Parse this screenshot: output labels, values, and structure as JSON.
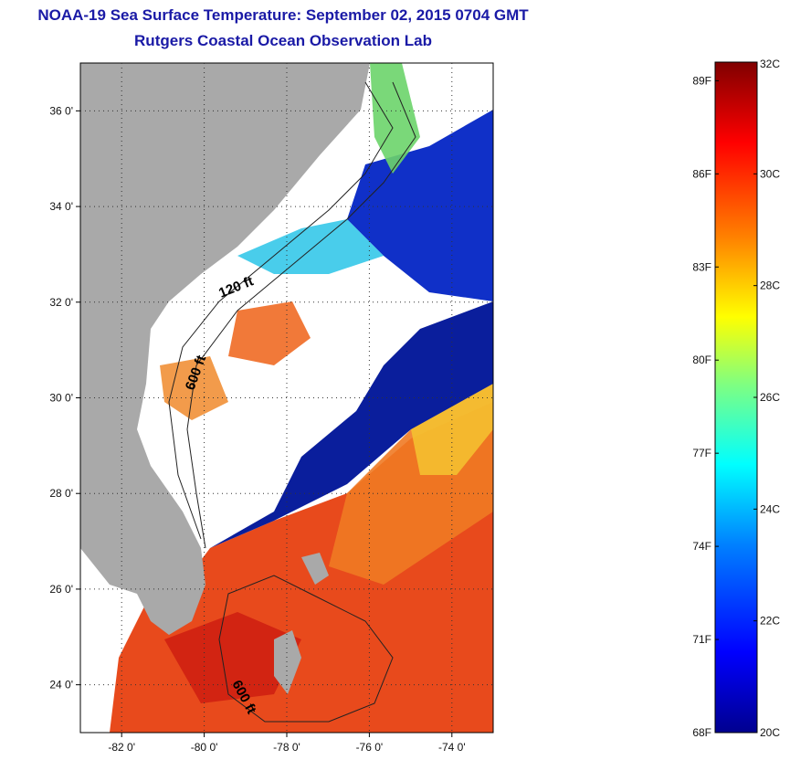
{
  "header": {
    "title": "NOAA-19 Sea Surface Temperature:  September 02, 2015 0704 GMT",
    "subtitle": "Rutgers Coastal Ocean Observation Lab"
  },
  "map": {
    "lat_ticks": [
      {
        "value": 36,
        "label": "36 0'"
      },
      {
        "value": 34,
        "label": "34 0'"
      },
      {
        "value": 32,
        "label": "32 0'"
      },
      {
        "value": 30,
        "label": "30 0'"
      },
      {
        "value": 28,
        "label": "28 0'"
      },
      {
        "value": 26,
        "label": "26 0'"
      },
      {
        "value": 24,
        "label": "24 0'"
      }
    ],
    "lon_ticks": [
      {
        "value": -82,
        "label": "-82 0'"
      },
      {
        "value": -80,
        "label": "-80 0'"
      },
      {
        "value": -78,
        "label": "-78 0'"
      },
      {
        "value": -76,
        "label": "-76 0'"
      },
      {
        "value": -74,
        "label": "-74 0'"
      }
    ],
    "lat_range": [
      23,
      37
    ],
    "lon_range": [
      -83,
      -73
    ],
    "contour_labels": {
      "shelf_120": "120 ft",
      "shelf_600_north": "600 ft",
      "shelf_600_south": "600 ft"
    },
    "colors": {
      "land": "#a9a9a9",
      "cloud": "#ffffff",
      "cool_water": "#0a1e9c",
      "warm_water": "#e8401a"
    }
  },
  "colorbar": {
    "celsius_labels": [
      {
        "value": 32,
        "label": "32C"
      },
      {
        "value": 30,
        "label": "30C"
      },
      {
        "value": 28,
        "label": "28C"
      },
      {
        "value": 26,
        "label": "26C"
      },
      {
        "value": 24,
        "label": "24C"
      },
      {
        "value": 22,
        "label": "22C"
      },
      {
        "value": 20,
        "label": "20C"
      }
    ],
    "fahrenheit_labels": [
      {
        "value": 89,
        "label": "89F"
      },
      {
        "value": 86,
        "label": "86F"
      },
      {
        "value": 83,
        "label": "83F"
      },
      {
        "value": 80,
        "label": "80F"
      },
      {
        "value": 77,
        "label": "77F"
      },
      {
        "value": 74,
        "label": "74F"
      },
      {
        "value": 71,
        "label": "71F"
      },
      {
        "value": 68,
        "label": "68F"
      }
    ],
    "range_c": [
      20,
      32
    ],
    "stops": [
      "#00008f",
      "#0000ff",
      "#0080ff",
      "#00ffff",
      "#80ff80",
      "#ffff00",
      "#ff8000",
      "#ff0000",
      "#800000"
    ]
  }
}
